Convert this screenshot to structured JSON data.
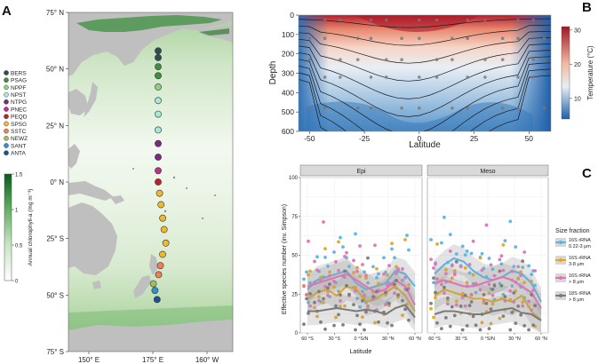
{
  "panels": {
    "a": "A",
    "b": "B",
    "c": "C"
  },
  "map": {
    "lat_ticks": [
      "75° N",
      "50° N",
      "25° N",
      "0° N",
      "25° S",
      "50° S",
      "75° S"
    ],
    "lon_ticks": [
      "150° E",
      "175° E",
      "160° W"
    ],
    "provinces": [
      {
        "code": "BERS",
        "color": "#2f4f4f"
      },
      {
        "code": "PSAG",
        "color": "#3f8f3f"
      },
      {
        "code": "NPPF",
        "color": "#8fd07f"
      },
      {
        "code": "NPST",
        "color": "#a8e8d8"
      },
      {
        "code": "NTPG",
        "color": "#7a2a80"
      },
      {
        "code": "PNEC",
        "color": "#c0308a"
      },
      {
        "code": "PEQD",
        "color": "#c0202a"
      },
      {
        "code": "SPSG",
        "color": "#f0b830"
      },
      {
        "code": "SSTC",
        "color": "#f08050"
      },
      {
        "code": "NEWZ",
        "color": "#a0c050"
      },
      {
        "code": "SANT",
        "color": "#3090d0"
      },
      {
        "code": "ANTA",
        "color": "#1f4f8f"
      }
    ],
    "stations": [
      {
        "lat": 58,
        "province": "BERS"
      },
      {
        "lat": 55,
        "province": "BERS"
      },
      {
        "lat": 51,
        "province": "PSAG"
      },
      {
        "lat": 47,
        "province": "PSAG"
      },
      {
        "lat": 42,
        "province": "NPPF"
      },
      {
        "lat": 36,
        "province": "NPST"
      },
      {
        "lat": 30,
        "province": "NPST"
      },
      {
        "lat": 23,
        "province": "NPST"
      },
      {
        "lat": 17,
        "province": "NTPG"
      },
      {
        "lat": 11,
        "province": "NTPG"
      },
      {
        "lat": 5,
        "province": "PNEC"
      },
      {
        "lat": 0,
        "province": "PEQD"
      },
      {
        "lat": -5,
        "province": "SPSG"
      },
      {
        "lat": -10,
        "province": "SPSG"
      },
      {
        "lat": -16,
        "province": "SPSG"
      },
      {
        "lat": -21,
        "province": "SPSG"
      },
      {
        "lat": -27,
        "province": "SPSG"
      },
      {
        "lat": -32,
        "province": "SPSG"
      },
      {
        "lat": -37,
        "province": "SSTC"
      },
      {
        "lat": -41,
        "province": "SSTC"
      },
      {
        "lat": -45,
        "province": "NEWZ"
      },
      {
        "lat": -48,
        "province": "SANT"
      },
      {
        "lat": -52,
        "province": "ANTA"
      }
    ],
    "colorbar": {
      "label": "Annual chlorophyll-a (mg m⁻³)",
      "ticks": [
        "1.5",
        "1",
        "0.5",
        "0"
      ]
    }
  },
  "chart_data": [
    {
      "type": "heatmap",
      "xlabel": "Latitude",
      "ylabel": "Depth",
      "x_ticks": [
        "-50",
        "-25",
        "0",
        "25",
        "50"
      ],
      "y_ticks": [
        "0",
        "100",
        "200",
        "300",
        "400",
        "500",
        "600"
      ],
      "xlim": [
        -55,
        60
      ],
      "ylim": [
        600,
        0
      ],
      "colorbar": {
        "label": "Temperature (°C)",
        "ticks": [
          "30",
          "20",
          "10"
        ],
        "range": [
          4,
          31
        ]
      }
    },
    {
      "type": "scatter",
      "facets": [
        "Epi",
        "Meso"
      ],
      "xlabel": "Latitude",
      "ylabel": "Effective species number (inv. Simpson)",
      "x_ticks": [
        "60 °S",
        "30 °S",
        "0 °S/N",
        "30 °N",
        "60 °N"
      ],
      "y_ticks": [
        "0",
        "25",
        "50",
        "75",
        "100"
      ],
      "ylim": [
        0,
        100
      ],
      "legend_title": "Size fraction",
      "series": [
        {
          "name": "16S rRNA\n0.22-3 μm",
          "color": "#5ab4e5"
        },
        {
          "name": "16S rRNA\n3-8 μm",
          "color": "#e6a817"
        },
        {
          "name": "16S rRNA\n> 8 μm",
          "color": "#e072b8"
        },
        {
          "name": "18S rRNA\n> 8 μm",
          "color": "#7a7a7a"
        }
      ]
    }
  ]
}
